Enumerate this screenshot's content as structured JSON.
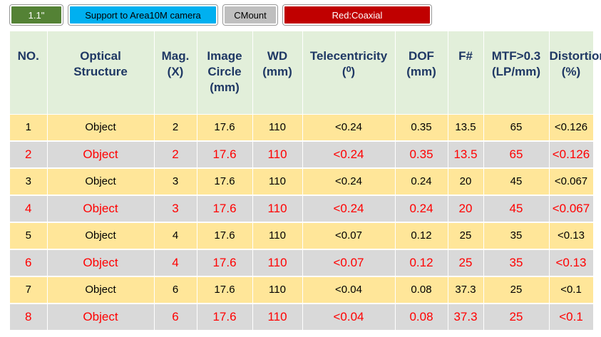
{
  "tags": [
    {
      "label": "1.1\""
    },
    {
      "label": "Support to Area10M camera"
    },
    {
      "label": "CMount"
    },
    {
      "label": "Red:Coaxial"
    }
  ],
  "colors": {
    "green_tag": "#548235",
    "blue_tag": "#00b0f0",
    "gray_tag": "#bfbfbf",
    "red_tag": "#c00000",
    "header_bg": "#e2efda",
    "header_text": "#1f3864",
    "row_odd_bg": "#ffe699",
    "row_even_bg": "#d9d9d9",
    "row_even_text": "#ff0000"
  },
  "table": {
    "headers": [
      [
        "NO."
      ],
      [
        "Optical",
        "Structure"
      ],
      [
        "Mag.",
        "(X)"
      ],
      [
        "Image",
        "Circle",
        "(mm)"
      ],
      [
        "WD",
        "(mm)"
      ],
      [
        "Telecentricity",
        "(⁰)"
      ],
      [
        "DOF",
        "(mm)"
      ],
      [
        "F#"
      ],
      [
        "MTF>0.3",
        "(LP/mm)"
      ],
      [
        "Distortion",
        "(%)"
      ]
    ],
    "rows": [
      [
        "1",
        "Object",
        "2",
        "17.6",
        "110",
        "<0.24",
        "0.35",
        "13.5",
        "65",
        "<0.126"
      ],
      [
        "2",
        "Object",
        "2",
        "17.6",
        "110",
        "<0.24",
        "0.35",
        "13.5",
        "65",
        "<0.126"
      ],
      [
        "3",
        "Object",
        "3",
        "17.6",
        "110",
        "<0.24",
        "0.24",
        "20",
        "45",
        "<0.067"
      ],
      [
        "4",
        "Object",
        "3",
        "17.6",
        "110",
        "<0.24",
        "0.24",
        "20",
        "45",
        "<0.067"
      ],
      [
        "5",
        "Object",
        "4",
        "17.6",
        "110",
        "<0.07",
        "0.12",
        "25",
        "35",
        "<0.13"
      ],
      [
        "6",
        "Object",
        "4",
        "17.6",
        "110",
        "<0.07",
        "0.12",
        "25",
        "35",
        "<0.13"
      ],
      [
        "7",
        "Object",
        "6",
        "17.6",
        "110",
        "<0.04",
        "0.08",
        "37.3",
        "25",
        "<0.1"
      ],
      [
        "8",
        "Object",
        "6",
        "17.6",
        "110",
        "<0.04",
        "0.08",
        "37.3",
        "25",
        "<0.1"
      ]
    ]
  }
}
